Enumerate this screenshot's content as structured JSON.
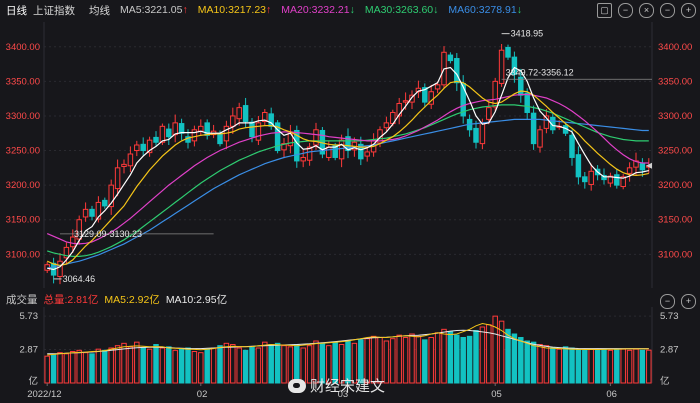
{
  "toolbar": {
    "tabs": [
      "日线",
      "上证指数",
      "均线"
    ],
    "ma": [
      {
        "label": "MA5:3221.05",
        "trend": "up",
        "color": "#ffffff"
      },
      {
        "label": "MA10:3217.23",
        "trend": "up",
        "color": "#f5c518"
      },
      {
        "label": "MA20:3232.21",
        "trend": "down",
        "color": "#e040c8"
      },
      {
        "label": "MA30:3263.60",
        "trend": "down",
        "color": "#2ecc71"
      },
      {
        "label": "MA60:3278.91",
        "trend": "down",
        "color": "#3a8ee6"
      }
    ],
    "icons": [
      "lock-icon",
      "minus-icon",
      "close-icon",
      "zoom-out-icon",
      "zoom-in-icon"
    ]
  },
  "chart_data": [
    {
      "type": "candlestick",
      "y_ticks": [
        "3400.00",
        "3350.00",
        "3300.00",
        "3250.00",
        "3200.00",
        "3150.00",
        "3100.00"
      ],
      "ylim": [
        3060,
        3430
      ],
      "x_ticks": [
        "2022/12",
        "02",
        "03",
        "05",
        "06"
      ],
      "annotations": [
        "3418.95",
        "3349.72-3356.12",
        "3129.09-3130.23",
        "3064.46"
      ],
      "colors": {
        "up": "#ff3a3a",
        "down": "#13c2c2",
        "ma5": "#ffffff",
        "ma10": "#f5c518",
        "ma20": "#e040c8",
        "ma30": "#2ecc71",
        "ma60": "#3a8ee6"
      },
      "close": [
        3085,
        3070,
        3090,
        3110,
        3125,
        3150,
        3165,
        3155,
        3175,
        3170,
        3200,
        3225,
        3230,
        3245,
        3258,
        3250,
        3265,
        3262,
        3285,
        3270,
        3290,
        3275,
        3262,
        3280,
        3285,
        3272,
        3278,
        3260,
        3285,
        3300,
        3312,
        3292,
        3270,
        3290,
        3305,
        3285,
        3250,
        3260,
        3275,
        3235,
        3240,
        3255,
        3280,
        3245,
        3255,
        3240,
        3265,
        3250,
        3262,
        3238,
        3248,
        3265,
        3280,
        3290,
        3305,
        3318,
        3322,
        3330,
        3340,
        3320,
        3335,
        3345,
        3392,
        3380,
        3348,
        3300,
        3280,
        3262,
        3290,
        3312,
        3350,
        3395,
        3385,
        3360,
        3330,
        3305,
        3260,
        3280,
        3300,
        3280,
        3285,
        3275,
        3240,
        3212,
        3205,
        3220,
        3215,
        3208,
        3213,
        3200,
        3212,
        3225,
        3235,
        3222,
        3228
      ],
      "ma5": [
        3080,
        3078,
        3082,
        3092,
        3104,
        3120,
        3134,
        3140,
        3154,
        3163,
        3174,
        3187,
        3201,
        3215,
        3232,
        3242,
        3250,
        3256,
        3264,
        3266,
        3274,
        3276,
        3276,
        3276,
        3278,
        3275,
        3275,
        3275,
        3280,
        3284,
        3290,
        3290,
        3290,
        3293,
        3294,
        3290,
        3280,
        3272,
        3275,
        3261,
        3252,
        3253,
        3257,
        3251,
        3255,
        3255,
        3259,
        3251,
        3254,
        3251,
        3254,
        3259,
        3269,
        3277,
        3288,
        3302,
        3314,
        3327,
        3336,
        3338,
        3343,
        3348,
        3368,
        3370,
        3360,
        3342,
        3322,
        3300,
        3288,
        3290,
        3306,
        3330,
        3355,
        3370,
        3365,
        3350,
        3326,
        3307,
        3297,
        3286,
        3285,
        3282,
        3277,
        3260,
        3244,
        3229,
        3219,
        3212,
        3212,
        3211,
        3210,
        3213,
        3218,
        3219,
        3221
      ],
      "ma10": [
        3090,
        3086,
        3084,
        3086,
        3092,
        3102,
        3112,
        3120,
        3130,
        3140,
        3150,
        3160,
        3170,
        3184,
        3198,
        3210,
        3222,
        3232,
        3242,
        3250,
        3258,
        3264,
        3268,
        3270,
        3272,
        3273,
        3274,
        3274,
        3275,
        3277,
        3281,
        3283,
        3284,
        3285,
        3286,
        3286,
        3284,
        3280,
        3277,
        3272,
        3267,
        3264,
        3263,
        3261,
        3259,
        3258,
        3258,
        3257,
        3256,
        3255,
        3255,
        3256,
        3260,
        3265,
        3270,
        3277,
        3285,
        3294,
        3304,
        3313,
        3322,
        3330,
        3340,
        3348,
        3350,
        3348,
        3342,
        3334,
        3326,
        3320,
        3318,
        3320,
        3326,
        3332,
        3336,
        3335,
        3330,
        3322,
        3314,
        3305,
        3297,
        3289,
        3282,
        3274,
        3264,
        3255,
        3246,
        3238,
        3230,
        3223,
        3218,
        3215,
        3214,
        3215,
        3217
      ],
      "ma20": [
        3130,
        3126,
        3122,
        3118,
        3116,
        3115,
        3116,
        3118,
        3122,
        3127,
        3132,
        3138,
        3145,
        3152,
        3160,
        3168,
        3176,
        3184,
        3192,
        3200,
        3207,
        3214,
        3221,
        3228,
        3234,
        3240,
        3245,
        3250,
        3254,
        3258,
        3262,
        3265,
        3268,
        3271,
        3273,
        3275,
        3276,
        3277,
        3277,
        3276,
        3275,
        3274,
        3273,
        3272,
        3270,
        3269,
        3268,
        3267,
        3266,
        3265,
        3264,
        3264,
        3264,
        3265,
        3266,
        3268,
        3271,
        3275,
        3279,
        3284,
        3289,
        3294,
        3300,
        3306,
        3311,
        3315,
        3318,
        3320,
        3322,
        3323,
        3324,
        3326,
        3328,
        3330,
        3331,
        3331,
        3330,
        3328,
        3326,
        3322,
        3318,
        3313,
        3307,
        3300,
        3293,
        3285,
        3277,
        3268,
        3259,
        3251,
        3244,
        3238,
        3234,
        3232,
        3232
      ],
      "ma30": [
        3105,
        3102,
        3100,
        3098,
        3097,
        3097,
        3098,
        3100,
        3103,
        3107,
        3111,
        3116,
        3121,
        3127,
        3133,
        3140,
        3147,
        3154,
        3161,
        3168,
        3175,
        3182,
        3189,
        3196,
        3203,
        3209,
        3215,
        3221,
        3226,
        3231,
        3236,
        3240,
        3244,
        3248,
        3251,
        3254,
        3257,
        3259,
        3261,
        3262,
        3263,
        3264,
        3264,
        3264,
        3264,
        3264,
        3264,
        3264,
        3264,
        3264,
        3265,
        3266,
        3267,
        3268,
        3270,
        3272,
        3274,
        3277,
        3280,
        3283,
        3287,
        3291,
        3295,
        3299,
        3303,
        3306,
        3309,
        3311,
        3313,
        3314,
        3315,
        3316,
        3316,
        3316,
        3315,
        3314,
        3312,
        3310,
        3307,
        3304,
        3300,
        3296,
        3292,
        3288,
        3284,
        3280,
        3276,
        3273,
        3270,
        3268,
        3266,
        3265,
        3264,
        3264,
        3264
      ],
      "ma60": [
        3080,
        3082,
        3084,
        3086,
        3088,
        3090,
        3093,
        3096,
        3099,
        3103,
        3107,
        3111,
        3115,
        3120,
        3125,
        3130,
        3135,
        3141,
        3147,
        3153,
        3159,
        3165,
        3171,
        3177,
        3183,
        3189,
        3195,
        3200,
        3205,
        3210,
        3215,
        3219,
        3223,
        3227,
        3231,
        3234,
        3237,
        3240,
        3242,
        3244,
        3246,
        3248,
        3249,
        3250,
        3251,
        3252,
        3253,
        3254,
        3255,
        3256,
        3257,
        3258,
        3260,
        3262,
        3264,
        3266,
        3268,
        3270,
        3272,
        3274,
        3276,
        3278,
        3280,
        3282,
        3284,
        3286,
        3288,
        3289,
        3290,
        3291,
        3292,
        3293,
        3294,
        3295,
        3295,
        3295,
        3295,
        3295,
        3294,
        3293,
        3292,
        3291,
        3290,
        3289,
        3288,
        3287,
        3286,
        3285,
        3284,
        3283,
        3282,
        3281,
        3280,
        3279,
        3279
      ]
    },
    {
      "type": "bar",
      "title": "成交量",
      "y_ticks": [
        "5.73",
        "2.87",
        "亿"
      ],
      "ylim": [
        0,
        6
      ],
      "x_ticks": [
        "2022/12",
        "02",
        "03",
        "05",
        "06"
      ],
      "values": [
        2.3,
        2.4,
        2.6,
        2.5,
        2.7,
        2.8,
        2.6,
        2.5,
        2.9,
        2.8,
        3.0,
        3.2,
        3.4,
        3.1,
        3.5,
        3.0,
        2.9,
        3.3,
        3.0,
        3.1,
        2.8,
        2.9,
        3.0,
        2.7,
        2.6,
        2.9,
        3.0,
        3.2,
        3.4,
        3.3,
        3.0,
        2.8,
        3.1,
        3.0,
        3.5,
        3.3,
        3.4,
        3.2,
        3.1,
        3.3,
        3.0,
        3.2,
        3.6,
        3.4,
        3.2,
        3.5,
        3.3,
        3.6,
        3.4,
        3.7,
        3.8,
        4.0,
        3.9,
        3.6,
        3.8,
        4.1,
        3.9,
        4.2,
        4.0,
        3.7,
        3.9,
        4.3,
        4.6,
        4.4,
        4.1,
        3.9,
        4.0,
        4.5,
        4.8,
        5.0,
        5.73,
        5.3,
        4.6,
        4.2,
        3.9,
        3.6,
        3.5,
        3.3,
        3.2,
        3.0,
        2.9,
        3.1,
        3.0,
        2.9,
        2.8,
        2.9,
        2.8,
        2.9,
        2.8,
        2.9,
        2.9,
        2.8,
        2.9,
        2.8,
        2.81
      ],
      "ma5": [
        2.4,
        2.45,
        2.5,
        2.55,
        2.6,
        2.62,
        2.65,
        2.7,
        2.72,
        2.78,
        2.9,
        3.0,
        3.1,
        3.15,
        3.18,
        3.15,
        3.1,
        3.12,
        3.1,
        3.0,
        2.98,
        2.95,
        2.9,
        2.88,
        2.85,
        2.9,
        2.95,
        3.05,
        3.1,
        3.15,
        3.12,
        3.1,
        3.12,
        3.2,
        3.25,
        3.3,
        3.28,
        3.25,
        3.22,
        3.2,
        3.25,
        3.3,
        3.38,
        3.4,
        3.45,
        3.5,
        3.55,
        3.6,
        3.7,
        3.8,
        3.9,
        3.95,
        3.92,
        3.9,
        3.95,
        4.0,
        4.05,
        4.0,
        3.95,
        4.05,
        4.2,
        4.3,
        4.2,
        4.15,
        4.2,
        4.4,
        4.6,
        4.9,
        5.1,
        5.0,
        4.8,
        4.5,
        4.1,
        3.8,
        3.6,
        3.4,
        3.2,
        3.1,
        3.0,
        2.98,
        2.95,
        2.92,
        2.9,
        2.88,
        2.87,
        2.88,
        2.87,
        2.88,
        2.89,
        2.9,
        2.91,
        2.92,
        2.92,
        2.92,
        2.92
      ],
      "ma10": [
        2.5,
        2.5,
        2.52,
        2.55,
        2.58,
        2.6,
        2.63,
        2.66,
        2.7,
        2.74,
        2.8,
        2.86,
        2.92,
        2.98,
        3.02,
        3.05,
        3.06,
        3.06,
        3.05,
        3.03,
        3.0,
        2.98,
        2.96,
        2.95,
        2.95,
        2.97,
        3.0,
        3.03,
        3.06,
        3.08,
        3.1,
        3.12,
        3.15,
        3.18,
        3.2,
        3.22,
        3.24,
        3.26,
        3.28,
        3.3,
        3.33,
        3.36,
        3.4,
        3.45,
        3.5,
        3.55,
        3.6,
        3.66,
        3.72,
        3.78,
        3.84,
        3.88,
        3.9,
        3.92,
        3.95,
        4.0,
        4.05,
        4.08,
        4.1,
        4.15,
        4.2,
        4.28,
        4.36,
        4.45,
        4.5,
        4.52,
        4.5,
        4.45,
        4.38,
        4.3,
        4.2,
        4.05,
        3.9,
        3.75,
        3.6,
        3.45,
        3.32,
        3.22,
        3.14,
        3.08,
        3.03,
        3.0,
        2.98,
        2.96,
        2.95,
        2.95,
        2.95,
        2.95,
        2.95,
        2.95,
        2.95,
        2.95,
        2.95,
        2.95,
        2.95
      ]
    }
  ],
  "volume_header": {
    "title": "成交量",
    "total": "总量:2.81亿",
    "ma5": "MA5:2.92亿",
    "ma10": "MA10:2.95亿"
  },
  "watermark": "财经宋建文"
}
